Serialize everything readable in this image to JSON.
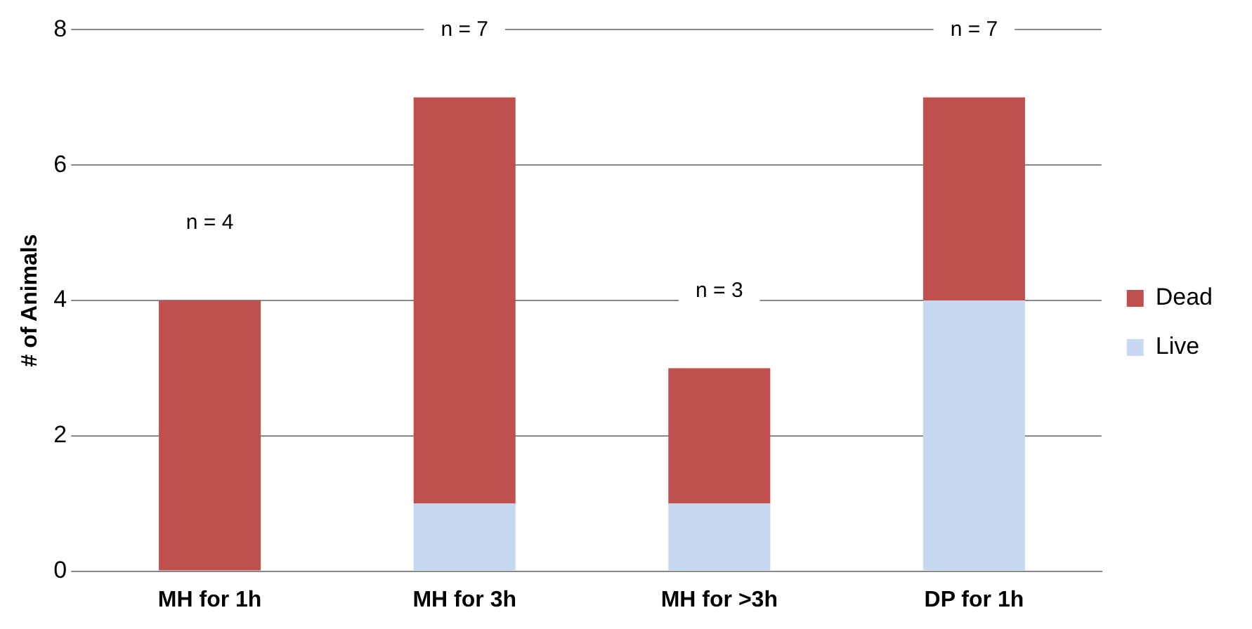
{
  "chart_data": {
    "type": "bar",
    "stacked": true,
    "ylabel": "# of Animals",
    "categories": [
      "MH for 1h",
      "MH for 3h",
      "MH for >3h",
      "DP for 1h"
    ],
    "series": [
      {
        "name": "Live",
        "color": "#c6d9f0",
        "values": [
          0,
          1,
          1,
          4
        ]
      },
      {
        "name": "Dead",
        "color": "#c0504d",
        "values": [
          4,
          6,
          2,
          3
        ]
      }
    ],
    "ylim": [
      0,
      8
    ],
    "yticks": [
      0,
      2,
      4,
      6,
      8
    ],
    "grid": "y",
    "legend": "right",
    "annotations": [
      "n = 4",
      "n = 7",
      "n = 3",
      "n = 7"
    ]
  }
}
